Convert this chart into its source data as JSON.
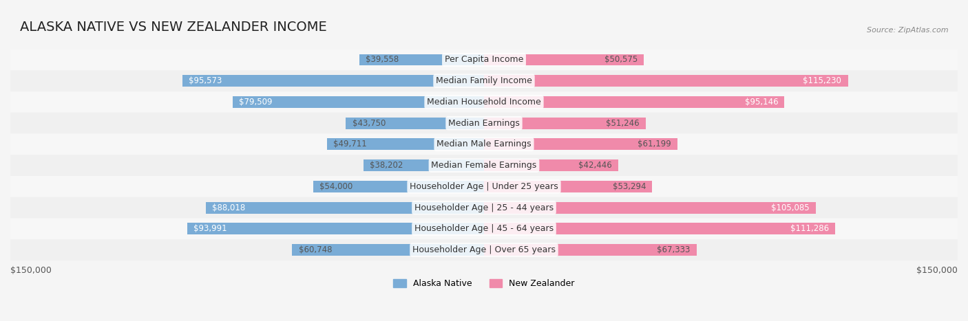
{
  "title": "ALASKA NATIVE VS NEW ZEALANDER INCOME",
  "source": "Source: ZipAtlas.com",
  "categories": [
    "Per Capita Income",
    "Median Family Income",
    "Median Household Income",
    "Median Earnings",
    "Median Male Earnings",
    "Median Female Earnings",
    "Householder Age | Under 25 years",
    "Householder Age | 25 - 44 years",
    "Householder Age | 45 - 64 years",
    "Householder Age | Over 65 years"
  ],
  "alaska_values": [
    39558,
    95573,
    79509,
    43750,
    49711,
    38202,
    54000,
    88018,
    93991,
    60748
  ],
  "nz_values": [
    50575,
    115230,
    95146,
    51246,
    61199,
    42446,
    53294,
    105085,
    111286,
    67333
  ],
  "alaska_color": "#7aacd6",
  "nz_color": "#f08aaa",
  "alaska_label": "Alaska Native",
  "nz_label": "New Zealander",
  "max_value": 150000,
  "background_color": "#f0f0f0",
  "bar_bg_color": "#e8e8e8",
  "title_fontsize": 14,
  "label_fontsize": 9,
  "value_fontsize": 8.5,
  "axis_label": "$150,000",
  "bar_height": 0.55,
  "row_bg_colors": [
    "#f7f7f7",
    "#f0f0f0"
  ]
}
